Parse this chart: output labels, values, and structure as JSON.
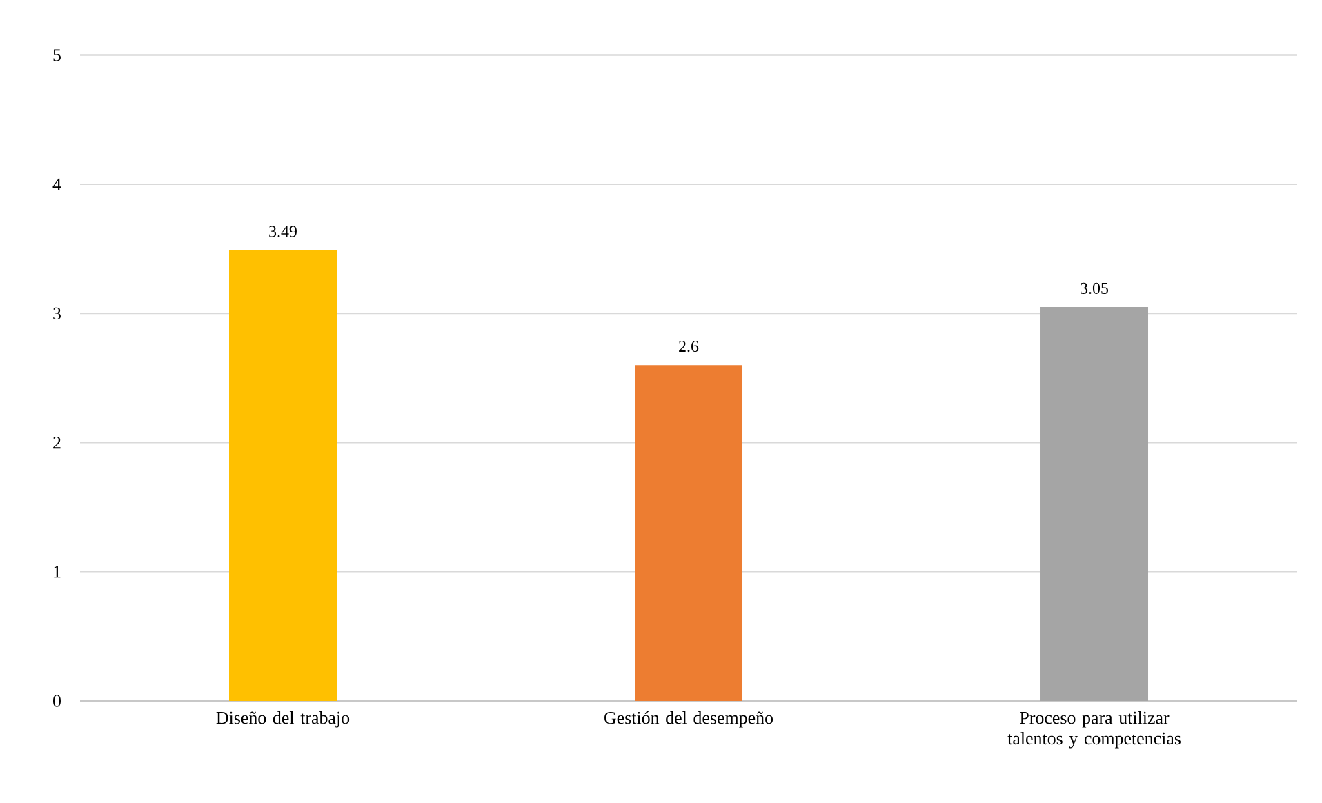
{
  "chart_data": {
    "type": "bar",
    "categories": [
      "Diseño del trabajo",
      "Gestión del desempeño",
      "Proceso para utilizar talentos y competencias"
    ],
    "values": [
      3.49,
      2.6,
      3.05
    ],
    "colors": [
      "#ffc000",
      "#ed7d31",
      "#a5a5a5"
    ],
    "ylim": [
      0,
      5
    ],
    "yticks": [
      0,
      1,
      2,
      3,
      4,
      5
    ],
    "grid": "y",
    "data_labels": true
  }
}
